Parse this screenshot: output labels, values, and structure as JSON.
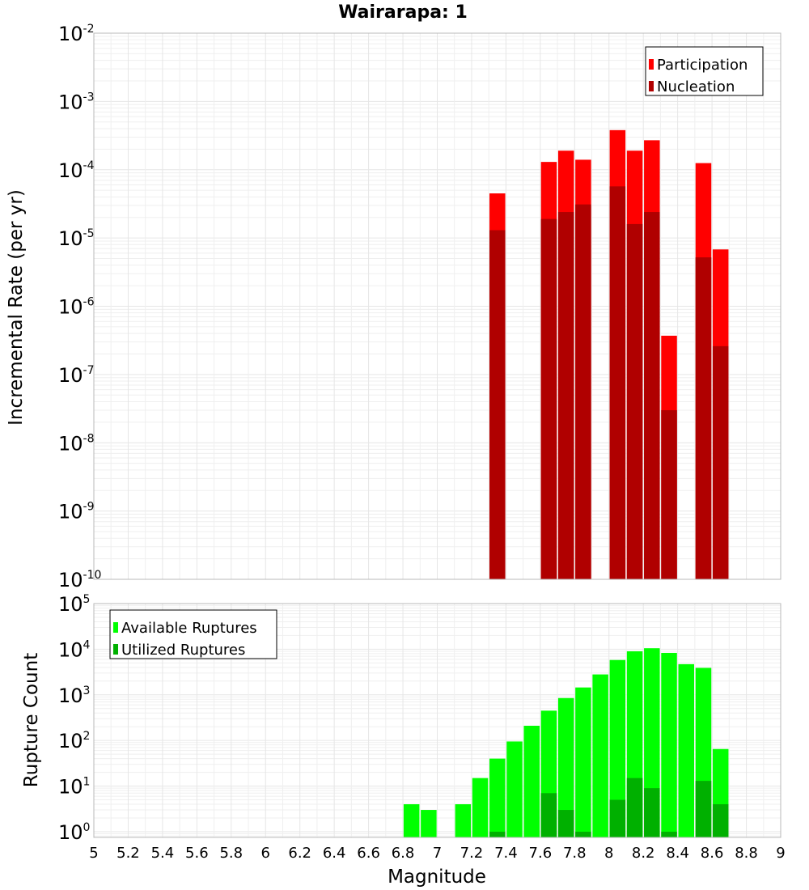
{
  "chart_data": [
    {
      "type": "bar",
      "title": "Wairarapa: 1",
      "ylabel": "Incremental Rate (per yr)",
      "yscale": "log",
      "ylim": [
        1e-10,
        0.01
      ],
      "xlim": [
        5,
        9
      ],
      "legend_position": "top-right",
      "x": [
        7.35,
        7.65,
        7.75,
        7.85,
        8.05,
        8.15,
        8.25,
        8.35,
        8.55,
        8.65
      ],
      "series": [
        {
          "name": "Participation",
          "color": "#ff0000",
          "values": [
            4.5e-05,
            0.00013,
            0.00019,
            0.00014,
            0.00038,
            0.00019,
            0.00027,
            3.7e-07,
            0.000125,
            6.8e-06
          ]
        },
        {
          "name": "Nucleation",
          "color": "#b00000",
          "values": [
            1.3e-05,
            1.9e-05,
            2.4e-05,
            3.1e-05,
            5.7e-05,
            1.6e-05,
            2.4e-05,
            3e-08,
            5.2e-06,
            2.6e-07
          ]
        }
      ],
      "ytick_bases": [
        "10",
        "10",
        "10",
        "10",
        "10",
        "10",
        "10",
        "10",
        "10"
      ],
      "ytick_exponents": [
        "-2",
        "-3",
        "-4",
        "-5",
        "-6",
        "-7",
        "-8",
        "-9",
        "-10"
      ],
      "ytick_values": [
        0.01,
        0.001,
        0.0001,
        1e-05,
        1e-06,
        1e-07,
        1e-08,
        1e-09,
        1e-10
      ]
    },
    {
      "type": "bar",
      "ylabel": "Rupture Count",
      "xlabel": "Magnitude",
      "yscale": "log",
      "ylim": [
        0.75,
        100000
      ],
      "xlim": [
        5,
        9
      ],
      "legend_position": "top-left",
      "x": [
        6.85,
        6.95,
        7.15,
        7.25,
        7.35,
        7.45,
        7.55,
        7.65,
        7.75,
        7.85,
        7.95,
        8.05,
        8.15,
        8.25,
        8.35,
        8.45,
        8.55,
        8.65
      ],
      "series": [
        {
          "name": "Available Ruptures",
          "color": "#00ff00",
          "values": [
            4,
            3,
            4,
            15,
            40,
            95,
            210,
            450,
            850,
            1450,
            2800,
            5800,
            9000,
            10500,
            8300,
            4700,
            3900,
            65
          ]
        },
        {
          "name": "Utilized Ruptures",
          "color": "#00b000",
          "values": [
            0,
            0,
            0,
            0,
            1,
            0,
            0,
            7,
            3,
            1,
            0,
            5,
            15,
            9,
            1,
            0,
            13,
            4
          ]
        }
      ],
      "xtick_labels": [
        "5",
        "5.2",
        "5.4",
        "5.6",
        "5.8",
        "6",
        "6.2",
        "6.4",
        "6.6",
        "6.8",
        "7",
        "7.2",
        "7.4",
        "7.6",
        "7.8",
        "8",
        "8.2",
        "8.4",
        "8.6",
        "8.8",
        "9"
      ],
      "xtick_values": [
        5,
        5.2,
        5.4,
        5.6,
        5.8,
        6,
        6.2,
        6.4,
        6.6,
        6.8,
        7,
        7.2,
        7.4,
        7.6,
        7.8,
        8,
        8.2,
        8.4,
        8.6,
        8.8,
        9
      ],
      "ytick_bases": [
        "10",
        "10",
        "10",
        "10",
        "10",
        "10"
      ],
      "ytick_exponents": [
        "5",
        "4",
        "3",
        "2",
        "1",
        "0"
      ],
      "ytick_values": [
        100000.0,
        10000.0,
        1000.0,
        100.0,
        10.0,
        1.0
      ]
    }
  ]
}
